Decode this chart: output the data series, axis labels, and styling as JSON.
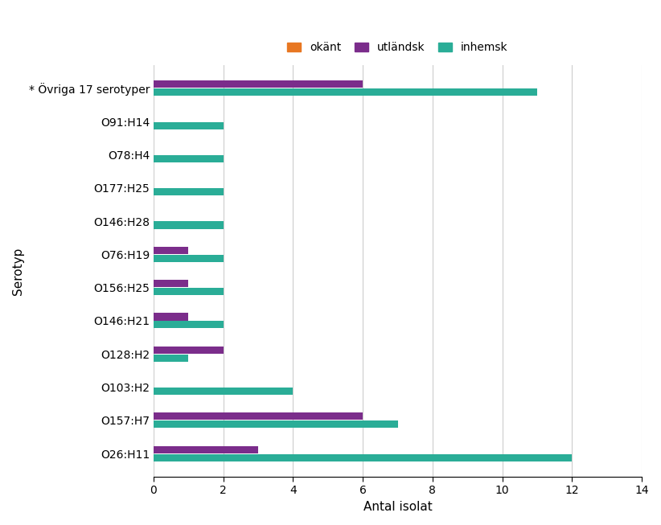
{
  "categories": [
    "* Övriga 17 serotyper",
    "O91:H14",
    "O78:H4",
    "O177:H25",
    "O146:H28",
    "O76:H19",
    "O156:H25",
    "O146:H21",
    "O128:H2",
    "O103:H2",
    "O157:H7",
    "O26:H11"
  ],
  "okant": [
    0,
    0,
    0,
    0,
    0,
    0,
    0,
    0,
    0,
    0,
    0,
    0
  ],
  "utlandsk": [
    6,
    0,
    0,
    0,
    0,
    1,
    1,
    1,
    2,
    0,
    6,
    3
  ],
  "inhemsk": [
    11,
    2,
    2,
    2,
    2,
    2,
    2,
    2,
    1,
    4,
    7,
    12
  ],
  "color_okant": "#E87722",
  "color_utlandsk": "#7B2D8B",
  "color_inhemsk": "#2AAD97",
  "legend_labels": [
    "okänt",
    "utländsk",
    "inhemsk"
  ],
  "xlabel": "Antal isolat",
  "ylabel": "Serotyp",
  "xlim": [
    0,
    14
  ],
  "xticks": [
    0,
    2,
    4,
    6,
    8,
    10,
    12,
    14
  ],
  "bar_height": 0.22,
  "bar_gap": 0.02,
  "background_color": "#ffffff"
}
